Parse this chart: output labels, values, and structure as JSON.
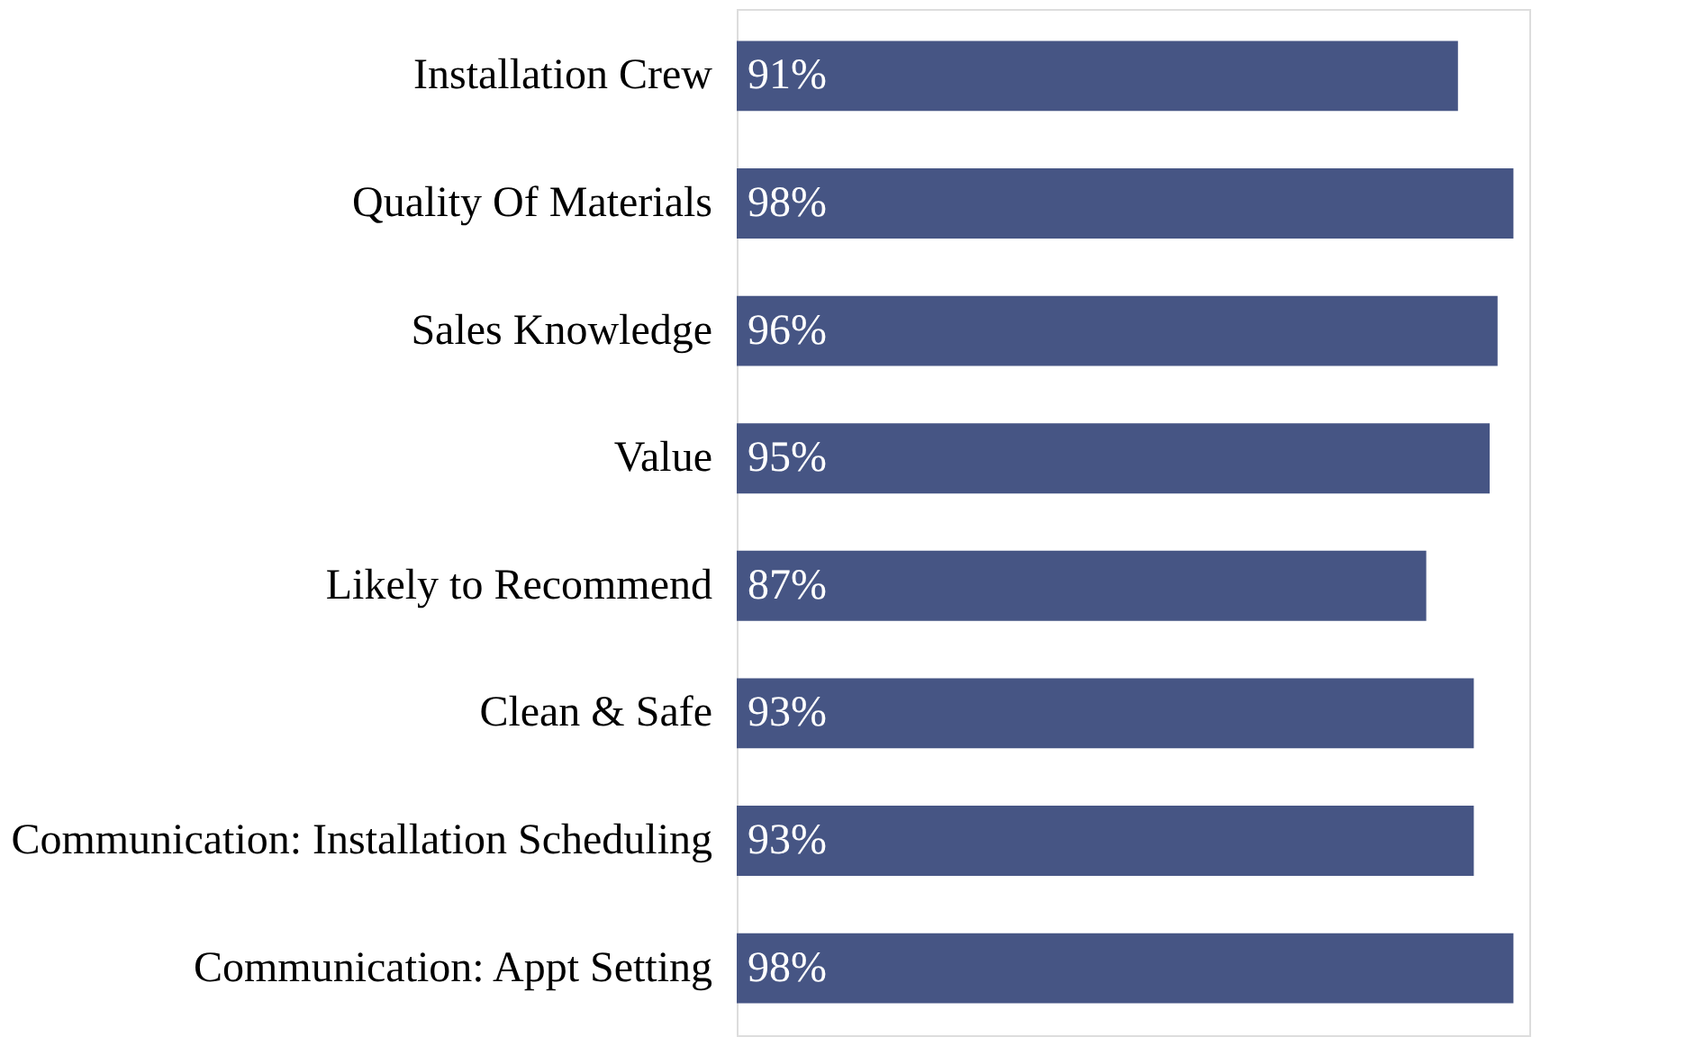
{
  "chart_data": {
    "type": "bar",
    "orientation": "horizontal",
    "categories": [
      "Installation Crew",
      "Quality Of Materials",
      "Sales Knowledge",
      "Value",
      "Likely to Recommend",
      "Clean & Safe",
      "Communication: Installation Scheduling",
      "Communication: Appt Setting"
    ],
    "values": [
      91,
      98,
      96,
      95,
      87,
      93,
      93,
      98
    ],
    "value_labels": [
      "91%",
      "98%",
      "96%",
      "95%",
      "87%",
      "93%",
      "93%",
      "98%"
    ],
    "color": "#465584"
  }
}
